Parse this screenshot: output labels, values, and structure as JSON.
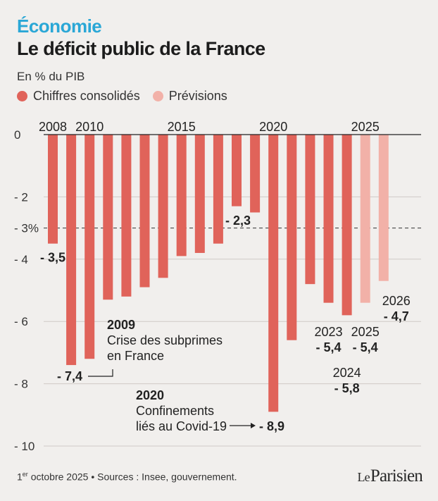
{
  "header": {
    "rubric": "Économie",
    "title": "Le déficit public de la France",
    "subtitle": "En % du PIB"
  },
  "legend": {
    "items": [
      {
        "label": "Chiffres consolidés",
        "color": "#e0635a"
      },
      {
        "label": "Prévisions",
        "color": "#f2b1a8"
      }
    ]
  },
  "chart_data": {
    "type": "bar",
    "categories": [
      "2008",
      "2009",
      "2010",
      "2011",
      "2012",
      "2013",
      "2014",
      "2015",
      "2016",
      "2017",
      "2018",
      "2019",
      "2020",
      "2021",
      "2022",
      "2023",
      "2024",
      "2025",
      "2026"
    ],
    "values": [
      -3.5,
      -7.4,
      -7.2,
      -5.3,
      -5.2,
      -4.9,
      -4.6,
      -3.9,
      -3.8,
      -3.5,
      -2.3,
      -2.5,
      -8.9,
      -6.6,
      -4.8,
      -5.4,
      -5.8,
      -5.4,
      -4.7
    ],
    "forecast": [
      false,
      false,
      false,
      false,
      false,
      false,
      false,
      false,
      false,
      false,
      false,
      false,
      false,
      false,
      false,
      false,
      false,
      true,
      true
    ],
    "x_tick_labels": {
      "2008": "2008",
      "2010": "2010",
      "2015": "2015",
      "2020": "2020",
      "2025": "2025"
    },
    "y_ticks": [
      0,
      -2,
      -4,
      -6,
      -8,
      -10
    ],
    "y_tick_labels": [
      "0",
      "- 2",
      "- 4",
      "- 6",
      "- 8",
      "- 10"
    ],
    "ylim": [
      -10,
      0
    ],
    "reference_line": {
      "value": -3,
      "label": "- 3%"
    },
    "data_labels": {
      "2008": "- 3,5",
      "2009": "- 7,4",
      "2018": "- 2,3",
      "2020": "- 8,9",
      "2023": {
        "year": "2023",
        "value": "- 5,4"
      },
      "2024": {
        "year": "2024",
        "value": "- 5,8"
      },
      "2025": {
        "year": "2025",
        "value": "- 5,4"
      },
      "2026": {
        "year": "2026",
        "value": "- 4,7"
      }
    },
    "annotations": [
      {
        "year": "2009",
        "text": [
          "Crise des subprimes",
          "en France"
        ]
      },
      {
        "year": "2020",
        "text": [
          "Confinements",
          "liés au Covid-19"
        ]
      }
    ],
    "colors": {
      "consolidated": "#e0635a",
      "forecast": "#f2b1a8",
      "grid": "#cfcac6"
    }
  },
  "footer": {
    "date_day": "1",
    "date_sup": "er",
    "text": " octobre 2025 • Sources : Insee, gouvernement."
  },
  "logo": {
    "part1": "Le",
    "part2": "Parisien"
  }
}
